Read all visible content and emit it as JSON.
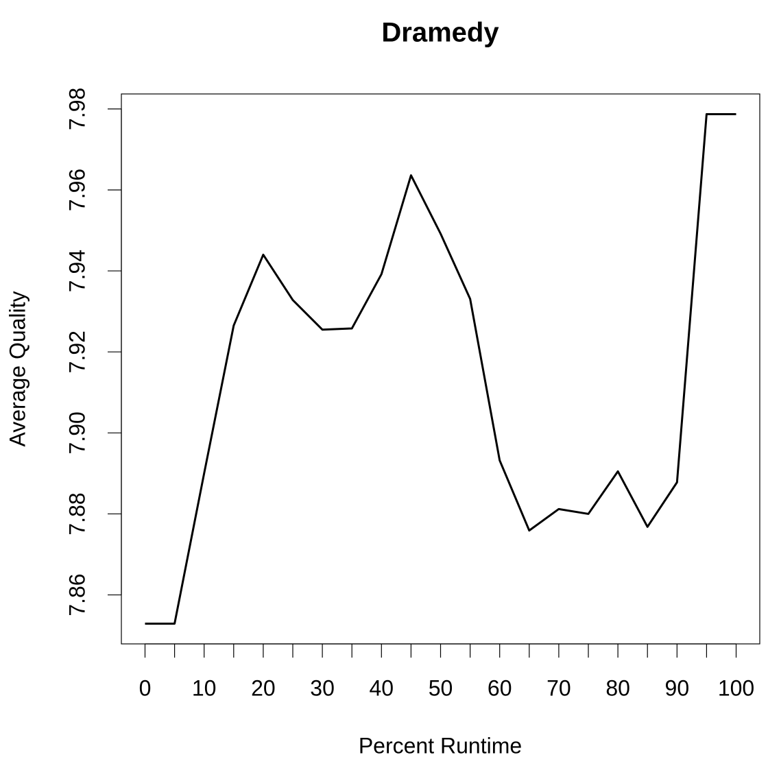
{
  "chart_data": {
    "type": "line",
    "title": "Dramedy",
    "xlabel": "Percent Runtime",
    "ylabel": "Average Quality",
    "x": [
      0,
      5,
      10,
      15,
      20,
      25,
      30,
      35,
      40,
      45,
      50,
      55,
      60,
      65,
      70,
      75,
      80,
      85,
      90,
      95,
      100
    ],
    "series": [
      {
        "color": "#000000",
        "values": [
          7.8529,
          7.8529,
          7.89,
          7.9265,
          7.944,
          7.9328,
          7.9255,
          7.9258,
          7.9392,
          7.9636,
          7.9492,
          7.9331,
          7.8932,
          7.8759,
          7.8812,
          7.88,
          7.8905,
          7.8768,
          7.8878,
          7.9787,
          7.9787
        ]
      }
    ],
    "xlim": [
      -4,
      104
    ],
    "ylim": [
      7.8479,
      7.9837
    ],
    "xticks": [
      0,
      10,
      20,
      30,
      40,
      50,
      60,
      70,
      80,
      90,
      100
    ],
    "xminorticks": [
      5,
      15,
      25,
      35,
      45,
      55,
      65,
      75,
      85,
      95
    ],
    "yticks": [
      7.86,
      7.88,
      {
        "value": 7.9,
        "label": "7.90"
      },
      7.92,
      7.94,
      7.96,
      7.98
    ],
    "grid": false
  }
}
